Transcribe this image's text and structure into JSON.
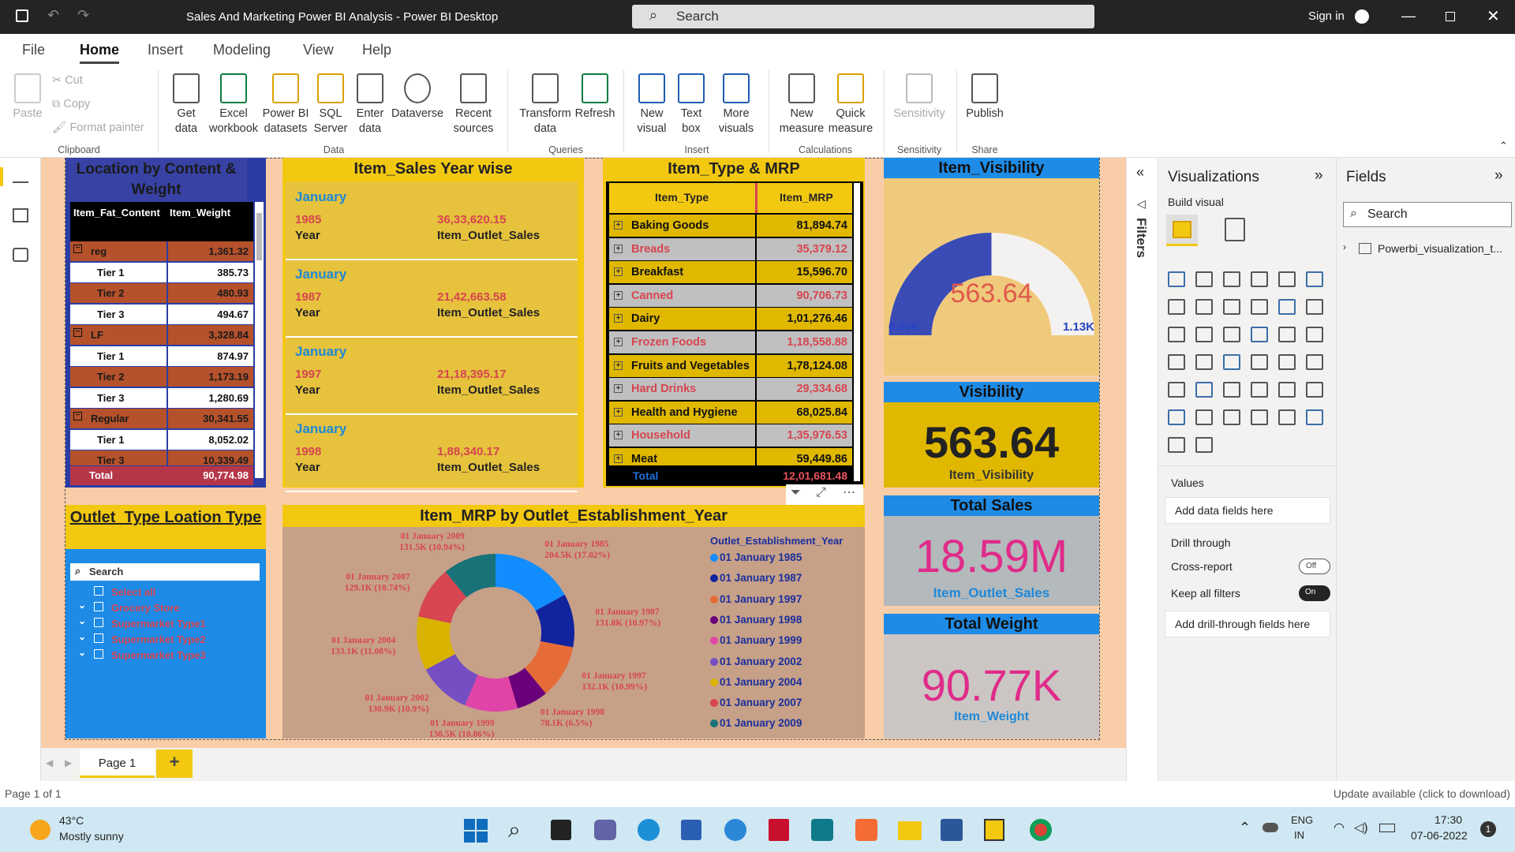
{
  "titlebar": {
    "title": "Sales And Marketing Power BI Analysis - Power BI Desktop",
    "search": "Search",
    "signin": "Sign in"
  },
  "menu": [
    "File",
    "Home",
    "Insert",
    "Modeling",
    "View",
    "Help"
  ],
  "ribbon": {
    "clipboard": {
      "paste": "Paste",
      "cut": "Cut",
      "copy": "Copy",
      "format_painter": "Format painter",
      "group": "Clipboard"
    },
    "data": {
      "get_data": "Get data",
      "excel": "Excel workbook",
      "pbi": "Power BI datasets",
      "sql": "SQL Server",
      "enter": "Enter data",
      "dataverse": "Dataverse",
      "recent": "Recent sources",
      "group": "Data"
    },
    "queries": {
      "transform": "Transform data",
      "refresh": "Refresh",
      "group": "Queries"
    },
    "insert": {
      "new_visual": "New visual",
      "text_box": "Text box",
      "more_visuals": "More visuals",
      "group": "Insert"
    },
    "calc": {
      "new_measure": "New measure",
      "quick_measure": "Quick measure",
      "group": "Calculations"
    },
    "sensitivity": {
      "label": "Sensitivity",
      "group": "Sensitivity"
    },
    "share": {
      "publish": "Publish",
      "group": "Share"
    }
  },
  "location": {
    "title": "Location by Content & Weight",
    "col1": "Item_Fat_Content",
    "col2": "Item_Weight",
    "rows": [
      {
        "label": "reg",
        "value": "1,361.32",
        "kind": "group"
      },
      {
        "label": "Tier 1",
        "value": "385.73",
        "kind": "white"
      },
      {
        "label": "Tier 2",
        "value": "480.93",
        "kind": "brown"
      },
      {
        "label": "Tier 3",
        "value": "494.67",
        "kind": "white"
      },
      {
        "label": "LF",
        "value": "3,328.84",
        "kind": "group"
      },
      {
        "label": "Tier 1",
        "value": "874.97",
        "kind": "white"
      },
      {
        "label": "Tier 2",
        "value": "1,173.19",
        "kind": "brown"
      },
      {
        "label": "Tier 3",
        "value": "1,280.69",
        "kind": "white"
      },
      {
        "label": "Regular",
        "value": "30,341.55",
        "kind": "group"
      },
      {
        "label": "Tier 1",
        "value": "8,052.02",
        "kind": "white"
      },
      {
        "label": "Tier 3",
        "value": "10,339.49",
        "kind": "brown"
      }
    ],
    "total_label": "Total",
    "total_value": "90,774.98"
  },
  "sales_year": {
    "title": "Item_Sales Year wise",
    "cards": [
      {
        "month": "January",
        "year": "1985",
        "value": "36,33,620.15",
        "year_label": "Year",
        "value_label": "Item_Outlet_Sales"
      },
      {
        "month": "January",
        "year": "1987",
        "value": "21,42,663.58",
        "year_label": "Year",
        "value_label": "Item_Outlet_Sales"
      },
      {
        "month": "January",
        "year": "1997",
        "value": "21,18,395.17",
        "year_label": "Year",
        "value_label": "Item_Outlet_Sales"
      },
      {
        "month": "January",
        "year": "1998",
        "value": "1,88,340.17",
        "year_label": "Year",
        "value_label": "Item_Outlet_Sales"
      }
    ]
  },
  "type_mrp": {
    "title": "Item_Type & MRP",
    "col1": "Item_Type",
    "col2": "Item_MRP",
    "rows": [
      {
        "label": "Baking Goods",
        "value": "81,894.74"
      },
      {
        "label": "Breads",
        "value": "35,379.12"
      },
      {
        "label": "Breakfast",
        "value": "15,596.70"
      },
      {
        "label": "Canned",
        "value": "90,706.73"
      },
      {
        "label": "Dairy",
        "value": "1,01,276.46"
      },
      {
        "label": "Frozen Foods",
        "value": "1,18,558.88"
      },
      {
        "label": "Fruits and Vegetables",
        "value": "1,78,124.08"
      },
      {
        "label": "Hard Drinks",
        "value": "29,334.68"
      },
      {
        "label": "Health and Hygiene",
        "value": "68,025.84"
      },
      {
        "label": "Household",
        "value": "1,35,976.53"
      },
      {
        "label": "Meat",
        "value": "59,449.86"
      }
    ],
    "total_label": "Total",
    "total_value": "12,01,681.48"
  },
  "visibility_gauge": {
    "title": "Item_Visibility",
    "value": "563.64",
    "min": "0.00K",
    "max": "1.13K",
    "fraction": 0.5
  },
  "visibility_card": {
    "title": "Visibility",
    "value": "563.64",
    "label": "Item_Visibility"
  },
  "sales_card": {
    "title": "Total Sales",
    "value": "18.59M",
    "label": "Item_Outlet_Sales"
  },
  "weight_card": {
    "title": "Total Weight",
    "value": "90.77K",
    "label": "Item_Weight"
  },
  "slicer": {
    "title": "Outlet_Type Loation Type",
    "search": "Search",
    "items": [
      "Select all",
      "Grocery Store",
      "Supermarket Type1",
      "Supermarket Type2",
      "Supermarket Type3"
    ]
  },
  "chart_data": {
    "type": "pie",
    "title": "Item_MRP by Outlet_Establishment_Year",
    "legend_title": "Outlet_Establishment_Year",
    "categories": [
      "01 January 1985",
      "01 January 1987",
      "01 January 1997",
      "01 January 1998",
      "01 January 1999",
      "01 January 2002",
      "01 January 2004",
      "01 January 2007",
      "01 January 2009"
    ],
    "values": [
      204.5,
      131.8,
      132.1,
      78.1,
      130.5,
      130.9,
      133.1,
      129.1,
      131.5
    ],
    "labels": [
      "204.5K (17.02%)",
      "131.8K (10.97%)",
      "132.1K (10.99%)",
      "78.1K (6.5%)",
      "130.5K (10.86%)",
      "130.9K (10.9%)",
      "133.1K (11.08%)",
      "129.1K (10.74%)",
      "131.5K (10.94%)"
    ],
    "colors": [
      "#118dff",
      "#12239e",
      "#e66c37",
      "#6b007b",
      "#e044a7",
      "#744ec2",
      "#d9b300",
      "#d64550",
      "#197278"
    ]
  },
  "vis_pane": {
    "title": "Visualizations",
    "build": "Build visual",
    "values": "Values",
    "values_ph": "Add data fields here",
    "drill": "Drill through",
    "cross": "Cross-report",
    "cross_state": "Off",
    "keep": "Keep all filters",
    "keep_state": "On",
    "drill_ph": "Add drill-through fields here"
  },
  "fields_pane": {
    "title": "Fields",
    "search": "Search",
    "table": "Powerbi_visualization_t..."
  },
  "filters": "Filters",
  "page": {
    "tab": "Page 1",
    "add": "+"
  },
  "status": {
    "left": "Page 1 of 1",
    "right": "Update available (click to download)"
  },
  "taskbar": {
    "temp": "43°C",
    "weather": "Mostly sunny",
    "lang1": "ENG",
    "lang2": "IN",
    "time": "17:30",
    "date": "07-06-2022",
    "notif": "1"
  }
}
